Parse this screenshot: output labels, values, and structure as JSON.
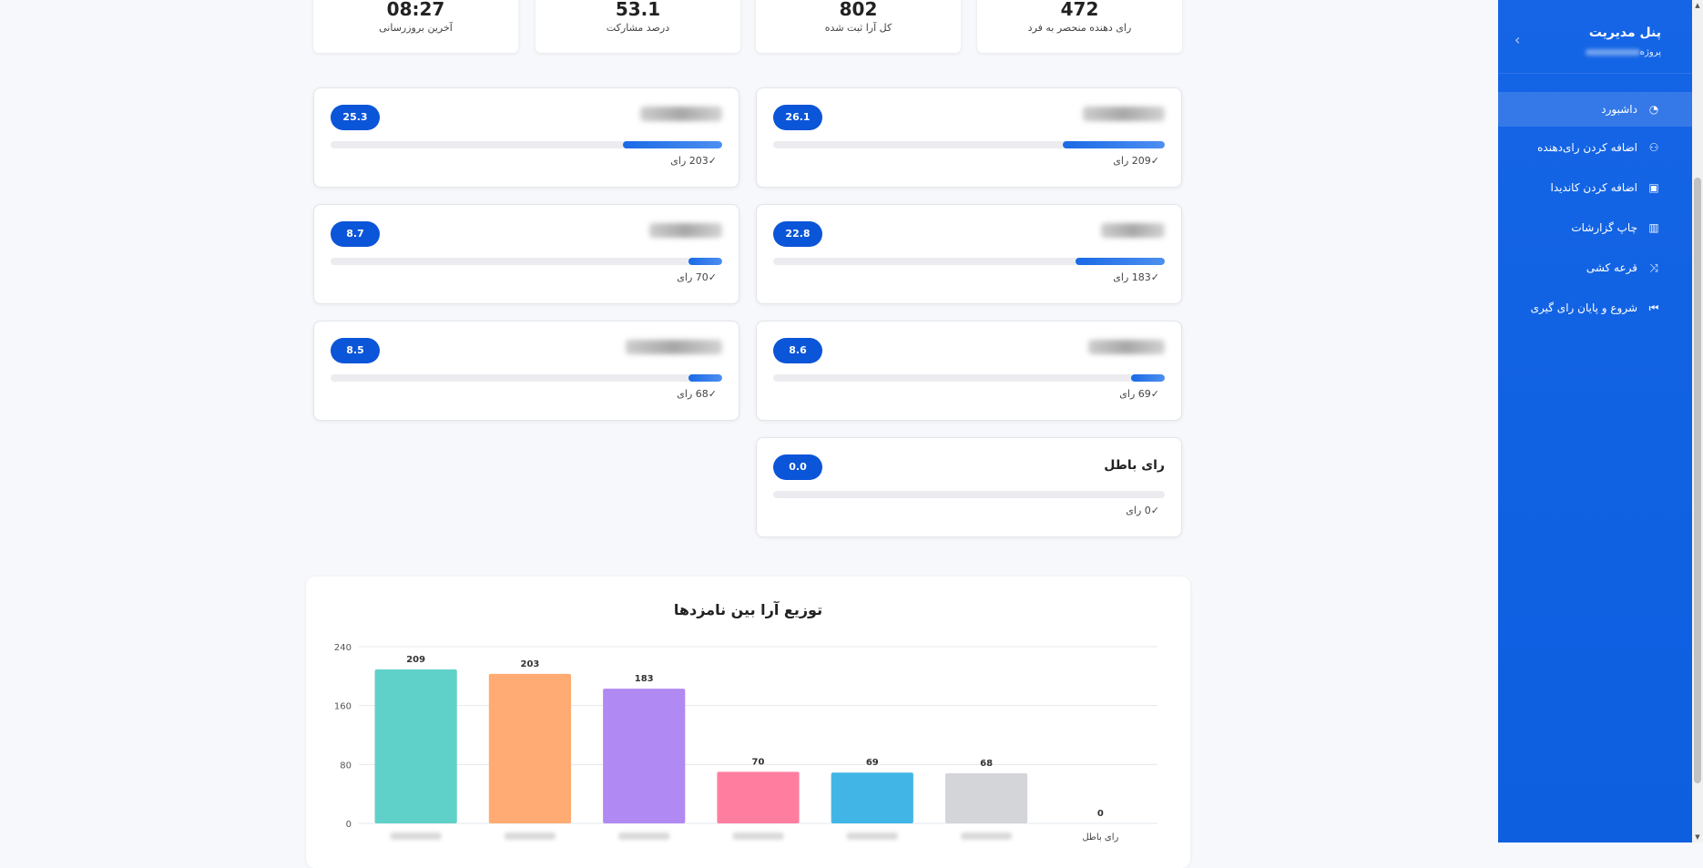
{
  "sidebar": {
    "title": "پنل مدیریت",
    "project_label": "پروژه",
    "items": [
      {
        "label": "داشبورد",
        "icon": "dashboard-icon",
        "glyph": "◔"
      },
      {
        "label": "اضافه کردن رای‌دهنده",
        "icon": "users-icon",
        "glyph": "⚇"
      },
      {
        "label": "اضافه کردن کاندیدا",
        "icon": "candidate-icon",
        "glyph": "▣"
      },
      {
        "label": "چاپ گزارشات",
        "icon": "report-icon",
        "glyph": "▥"
      },
      {
        "label": "قرعه کشی",
        "icon": "shuffle-icon",
        "glyph": "⤨"
      },
      {
        "label": "شروع و پایان رای گیری",
        "icon": "skip-icon",
        "glyph": "⏮"
      }
    ]
  },
  "stats": [
    {
      "value": "472",
      "label": "رای دهنده منحصر به فرد"
    },
    {
      "value": "802",
      "label": "کل آرا ثبت شده"
    },
    {
      "value": "53.1",
      "label": "درصد مشارکت"
    },
    {
      "value": "08:27",
      "label": "آخرین بروزرسانی"
    }
  ],
  "candidates": [
    {
      "percent": "26.1",
      "fill": 26.1,
      "votes": "209 رای"
    },
    {
      "percent": "25.3",
      "fill": 25.3,
      "votes": "203 رای"
    },
    {
      "percent": "22.8",
      "fill": 22.8,
      "votes": "183 رای"
    },
    {
      "percent": "8.7",
      "fill": 8.7,
      "votes": "70 رای"
    },
    {
      "percent": "8.6",
      "fill": 8.6,
      "votes": "69 رای"
    },
    {
      "percent": "8.5",
      "fill": 8.5,
      "votes": "68 رای"
    },
    {
      "name": "رای باطل",
      "percent": "0.0",
      "fill": 0,
      "votes": "0 رای"
    }
  ],
  "chart_title": "توزیع آرا بین نامزدها",
  "chart_data": {
    "type": "bar",
    "title": "توزیع آرا بین نامزدها",
    "categories": [
      "",
      "",
      "",
      "",
      "",
      "",
      "رای باطل"
    ],
    "values": [
      209,
      203,
      183,
      70,
      69,
      68,
      0
    ],
    "colors": [
      "#5fd1c9",
      "#ffab73",
      "#b08af2",
      "#ff7ea0",
      "#41b6e6",
      "#d3d5d9",
      "#d3d5d9"
    ],
    "yticks": [
      0,
      80,
      160,
      240
    ],
    "ylim": [
      0,
      240
    ],
    "grid": true
  }
}
